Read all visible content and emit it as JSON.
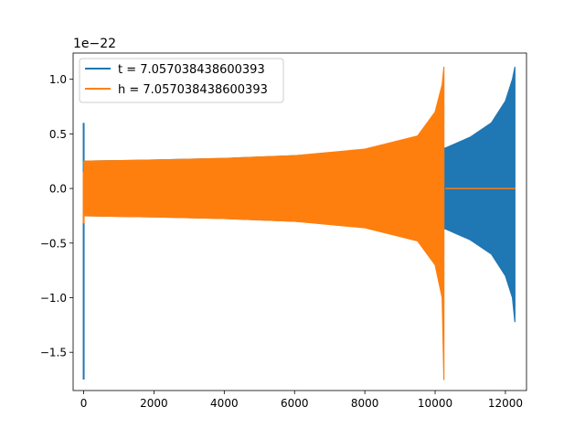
{
  "chart_data": {
    "type": "line",
    "title": "",
    "xlabel": "",
    "ylabel": "",
    "y_offset_label": "1e−22",
    "xlim": [
      -300,
      12600
    ],
    "ylim": [
      -1.85,
      1.24
    ],
    "x_ticks": [
      0,
      2000,
      4000,
      6000,
      8000,
      10000,
      12000
    ],
    "y_ticks": [
      -1.5,
      -1.0,
      -0.5,
      0.0,
      0.5,
      1.0
    ],
    "x_tick_labels": [
      "0",
      "2000",
      "4000",
      "6000",
      "8000",
      "10000",
      "12000"
    ],
    "y_tick_labels": [
      "−1.5",
      "−1.0",
      "−0.5",
      "0.0",
      "0.5",
      "1.0"
    ],
    "grid": false,
    "legend_position": "top-left",
    "series": [
      {
        "name": "t = 7.057038438600393",
        "color": "#1f77b4",
        "x_range": [
          0,
          12288
        ],
        "initial_spike": {
          "x": 0,
          "max": 0.6,
          "min": -1.75
        },
        "envelope": [
          {
            "x": 10,
            "upper": 0.25,
            "lower": -0.25
          },
          {
            "x": 2000,
            "upper": 0.26,
            "lower": -0.26
          },
          {
            "x": 4000,
            "upper": 0.275,
            "lower": -0.275
          },
          {
            "x": 6000,
            "upper": 0.3,
            "lower": -0.3
          },
          {
            "x": 8000,
            "upper": 0.335,
            "lower": -0.335
          },
          {
            "x": 10290,
            "upper": 0.37,
            "lower": -0.37
          },
          {
            "x": 11000,
            "upper": 0.47,
            "lower": -0.47
          },
          {
            "x": 11600,
            "upper": 0.6,
            "lower": -0.6
          },
          {
            "x": 12000,
            "upper": 0.8,
            "lower": -0.8
          },
          {
            "x": 12200,
            "upper": 1.0,
            "lower": -1.0
          },
          {
            "x": 12270,
            "upper": 1.11,
            "lower": -1.22
          }
        ],
        "tail_value": 0.0
      },
      {
        "name": "h = 7.057038438600393",
        "color": "#ff7f0e",
        "x_range": [
          0,
          10290
        ],
        "initial_spike": {
          "x": 0,
          "max": 0.15,
          "min": -0.32
        },
        "envelope": [
          {
            "x": 10,
            "upper": 0.25,
            "lower": -0.25
          },
          {
            "x": 2000,
            "upper": 0.26,
            "lower": -0.26
          },
          {
            "x": 4000,
            "upper": 0.275,
            "lower": -0.275
          },
          {
            "x": 6000,
            "upper": 0.3,
            "lower": -0.3
          },
          {
            "x": 8000,
            "upper": 0.36,
            "lower": -0.36
          },
          {
            "x": 9500,
            "upper": 0.48,
            "lower": -0.48
          },
          {
            "x": 10000,
            "upper": 0.7,
            "lower": -0.7
          },
          {
            "x": 10200,
            "upper": 0.95,
            "lower": -1.0
          },
          {
            "x": 10250,
            "upper": 1.11,
            "lower": -1.75
          }
        ],
        "tail_segment": {
          "x_start": 10290,
          "x_end": 12288,
          "value": 0.0
        }
      }
    ]
  }
}
